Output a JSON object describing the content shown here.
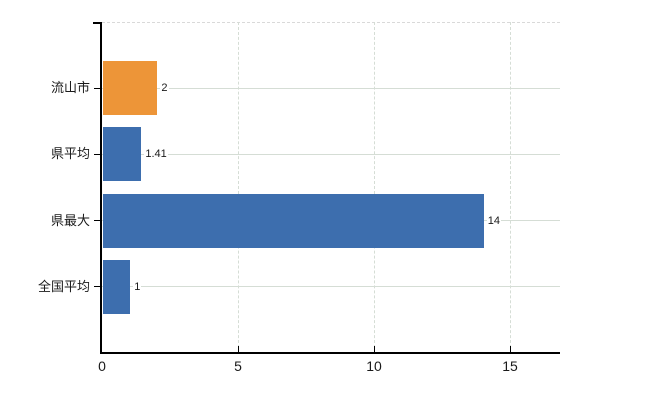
{
  "colors": {
    "bar_blue": "#3D6EAE",
    "bar_orange": "#ED9538",
    "grid": "#D5DDD5",
    "top_border": "#D9D9D9",
    "axis": "#000000",
    "text": "#1A1A1A"
  },
  "chart_data": {
    "type": "bar",
    "orientation": "horizontal",
    "title": "",
    "xlabel": "",
    "ylabel": "",
    "categories": [
      "流山市",
      "県平均",
      "県最大",
      "全国平均"
    ],
    "values": [
      2,
      1.41,
      14,
      1
    ],
    "value_labels": [
      "2",
      "1.41",
      "14",
      "1"
    ],
    "bar_colors": [
      "#ED9538",
      "#3D6EAE",
      "#3D6EAE",
      "#3D6EAE"
    ],
    "highlight_category": "流山市",
    "x_ticks": [
      0,
      5,
      10,
      15
    ],
    "x_tick_labels": [
      "0",
      "5",
      "10",
      "15"
    ],
    "xlim": [
      0,
      16.8
    ],
    "grid": true,
    "legend": false
  }
}
